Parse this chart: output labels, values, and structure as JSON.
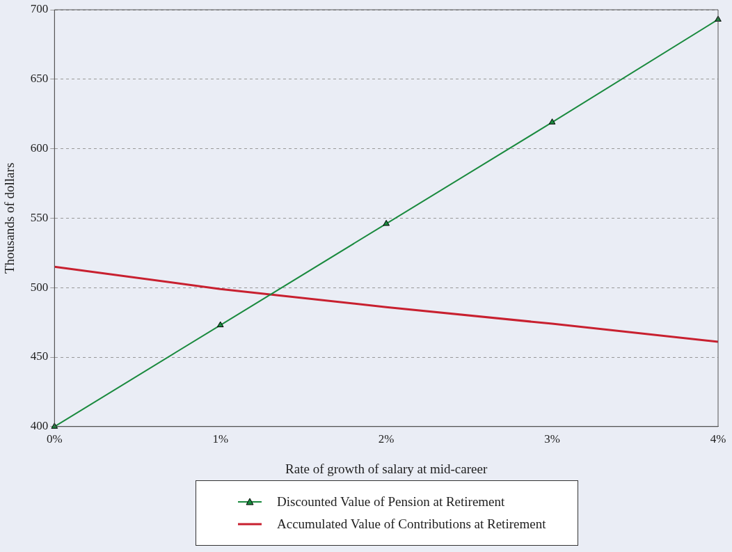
{
  "chart_data": {
    "type": "line",
    "xlabel": "Rate of growth of salary at mid-career",
    "ylabel": "Thousands of dollars",
    "x": [
      0,
      1,
      2,
      3,
      4
    ],
    "xlim": [
      0,
      4
    ],
    "xticks": [
      {
        "value": 0,
        "label": "0%"
      },
      {
        "value": 1,
        "label": "1%"
      },
      {
        "value": 2,
        "label": "2%"
      },
      {
        "value": 3,
        "label": "3%"
      },
      {
        "value": 4,
        "label": "4%"
      }
    ],
    "ylim": [
      400,
      700
    ],
    "yticks": [
      400,
      450,
      500,
      550,
      600,
      650,
      700
    ],
    "grid": "y",
    "legend": "bottom",
    "series": [
      {
        "name": "Discounted Value of Pension at Retirement",
        "color": "#1a8a3e",
        "values": [
          400,
          473,
          546,
          619,
          693
        ],
        "marker": "triangle"
      },
      {
        "name": "Accumulated Value of Contributions at Retirement",
        "color": "#c8202f",
        "values": [
          515,
          499,
          486,
          474,
          461
        ],
        "marker": "none"
      }
    ]
  }
}
